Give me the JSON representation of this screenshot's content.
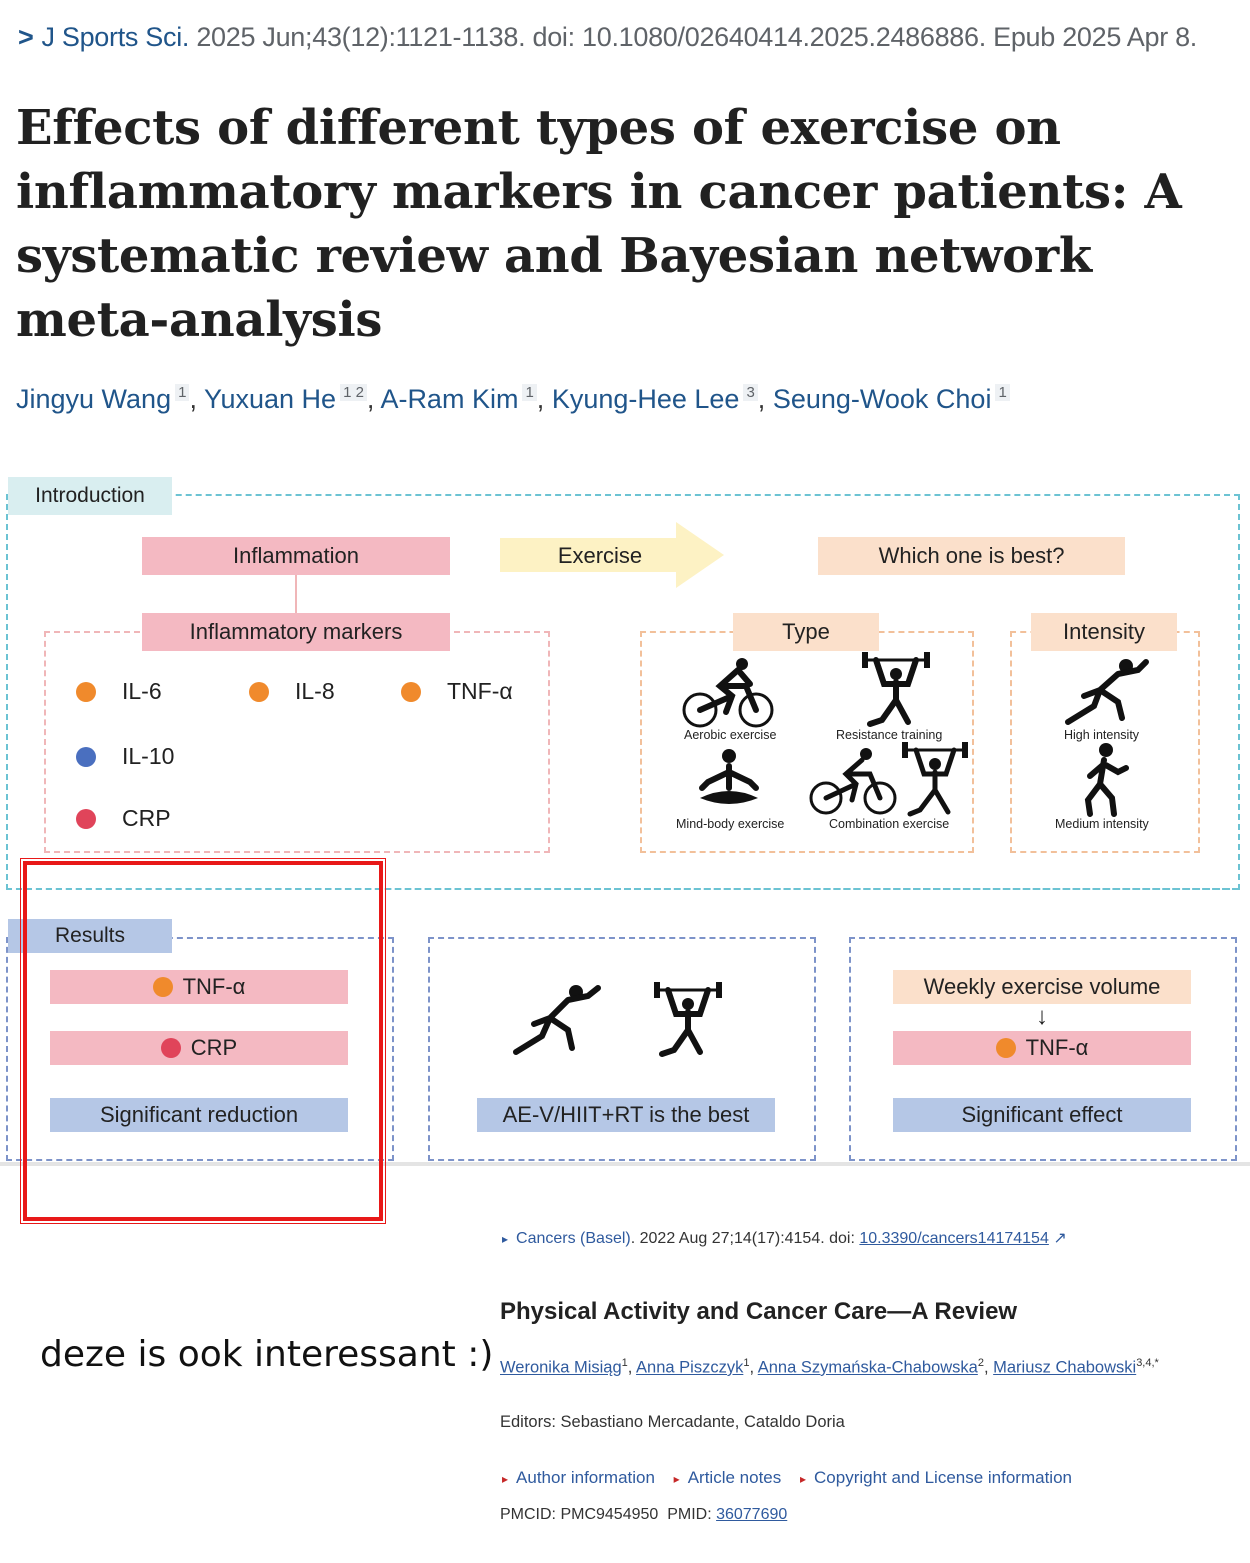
{
  "citation": {
    "journal": "J Sports Sci.",
    "details": "2025 Jun;43(12):1121-1138. doi: 10.1080/02640414.2025.2486886. Epub 2025 Apr 8."
  },
  "title": "Effects of different types of exercise on inflammatory markers in cancer patients: A systematic review and Bayesian network meta-analysis",
  "authors": [
    {
      "name": "Jingyu Wang",
      "aff": "1"
    },
    {
      "name": "Yuxuan He",
      "aff": "1  2"
    },
    {
      "name": "A-Ram Kim",
      "aff": "1"
    },
    {
      "name": "Kyung-Hee Lee",
      "aff": "3"
    },
    {
      "name": "Seung-Wook Choi",
      "aff": "1"
    }
  ],
  "abstract": {
    "introduction_label": "Introduction",
    "inflammation": "Inflammation",
    "exercise": "Exercise",
    "which_best": "Which one is best?",
    "inflammatory_markers": "Inflammatory markers",
    "markers": [
      "IL-6",
      "IL-8",
      "TNF-α",
      "IL-10",
      "CRP"
    ],
    "type_label": "Type",
    "intensity_label": "Intensity",
    "types": [
      "Aerobic exercise",
      "Resistance training",
      "Mind-body exercise",
      "Combination exercise"
    ],
    "intensities": [
      "High intensity",
      "Medium intensity"
    ],
    "results_label": "Results",
    "res_tnf": "TNF-α",
    "res_crp": "CRP",
    "sig_reduction": "Significant reduction",
    "best": "AE-V/HIIT+RT is the best",
    "weekly": "Weekly exercise volume",
    "arrow": "↓",
    "res_tnf2": "TNF-α",
    "sig_effect": "Significant effect",
    "colors": {
      "orange": "#f08a2c",
      "blue": "#4a6fbf",
      "red": "#e0445a"
    }
  },
  "comment": "deze is ook interessant :)",
  "card": {
    "journal": "Cancers (Basel)",
    "details": ". 2022 Aug 27;14(17):4154. doi: ",
    "doi": "10.3390/cancers14174154",
    "title": "Physical Activity and Cancer Care—A Review",
    "authors": [
      {
        "name": "Weronika Misiąg",
        "aff": "1"
      },
      {
        "name": "Anna Piszczyk",
        "aff": "1"
      },
      {
        "name": "Anna Szymańska-Chabowska",
        "aff": "2"
      },
      {
        "name": "Mariusz Chabowski",
        "aff": "3,4,*"
      }
    ],
    "editors": "Editors: Sebastiano Mercadante, Cataldo Doria",
    "links": [
      "Author information",
      "Article notes",
      "Copyright and License information"
    ],
    "pmcid": "PMCID: PMC9454950",
    "pmid_label": "PMID: ",
    "pmid": "36077690"
  }
}
